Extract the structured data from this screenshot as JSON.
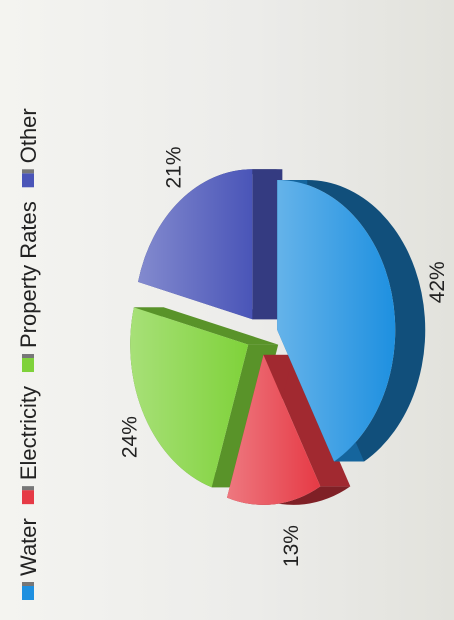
{
  "chart_data": {
    "type": "pie",
    "categories": [
      "Water",
      "Electricity",
      "Property Rates",
      "Other"
    ],
    "values": [
      42,
      13,
      24,
      21
    ],
    "data_labels": [
      "42%",
      "13%",
      "24%",
      "21%"
    ],
    "colors": [
      "#1e90e0",
      "#e63a45",
      "#7fd23a",
      "#4a55b8"
    ],
    "style": "3d-exploded",
    "legend_position": "left",
    "orientation": "rotated-90-ccw"
  }
}
